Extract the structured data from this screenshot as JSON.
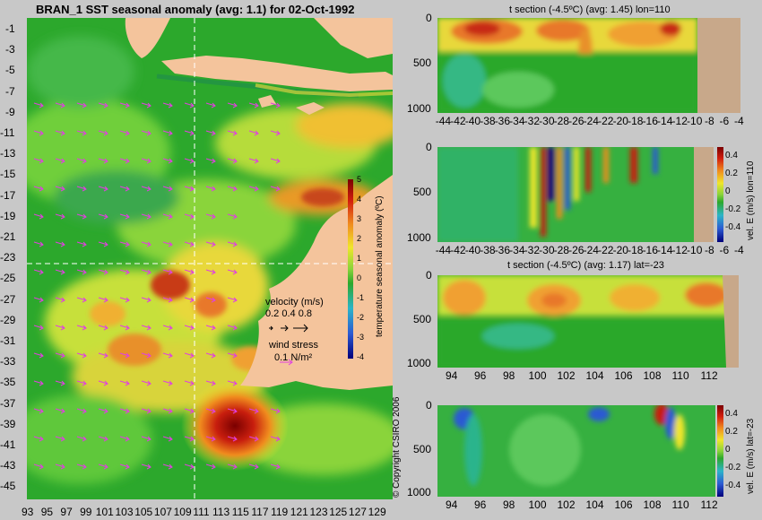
{
  "chart_data": [
    {
      "type": "heatmap",
      "title": "BRAN_1 SST seasonal anomaly (avg: 1.1) for 02-Oct-1992",
      "x_ticks": [
        "93",
        "95",
        "97",
        "99",
        "101",
        "103",
        "105",
        "107",
        "109",
        "111",
        "113",
        "115",
        "117",
        "119",
        "121",
        "123",
        "125",
        "127",
        "129"
      ],
      "y_ticks": [
        "-1",
        "-3",
        "-5",
        "-7",
        "-9",
        "-11",
        "-13",
        "-15",
        "-17",
        "-19",
        "-21",
        "-23",
        "-25",
        "-27",
        "-29",
        "-31",
        "-33",
        "-35",
        "-37",
        "-39",
        "-41",
        "-43",
        "-45"
      ],
      "xlim": [
        93,
        130
      ],
      "ylim": [
        -45,
        0
      ],
      "crosshair": {
        "lon": 110,
        "lat": -23
      },
      "colorbar": {
        "label": "temperature seasonal anomaly (ºC)",
        "ticks": [
          "5",
          "4",
          "3",
          "2",
          "1",
          "0",
          "-1",
          "-2",
          "-3",
          "-4"
        ],
        "range": [
          -4,
          5
        ]
      },
      "legend": {
        "velocity_title": "velocity (m/s)",
        "velocity_scale": "0.2 0.4 0.8",
        "wind_title": "wind stress",
        "wind_scale": "0.1 N/m²"
      },
      "hot_spots": [
        {
          "lon": 113,
          "lat": -38,
          "anomaly": 4.5
        },
        {
          "lon": 105,
          "lat": -26,
          "anomaly": 3.5
        },
        {
          "lon": 111,
          "lat": -34,
          "anomaly": 3.0
        },
        {
          "lon": 121,
          "lat": -16,
          "anomaly": 3.0
        },
        {
          "lon": 103,
          "lat": -31,
          "anomaly": 2.5
        }
      ]
    },
    {
      "type": "heatmap",
      "title": "t section (-4.5ºC) (avg: 1.45) lon=110",
      "x_ticks": [
        "-44",
        "-42",
        "-40",
        "-38",
        "-36",
        "-34",
        "-32",
        "-30",
        "-28",
        "-26",
        "-24",
        "-22",
        "-20",
        "-18",
        "-16",
        "-14",
        "-12",
        "-10",
        "-8",
        "-6",
        "-4"
      ],
      "y_ticks": [
        "0",
        "500",
        "1000"
      ],
      "xlim": [
        -45,
        -3
      ],
      "ylim": [
        1050,
        0
      ]
    },
    {
      "type": "heatmap",
      "title": "",
      "x_ticks": [
        "-44",
        "-42",
        "-40",
        "-38",
        "-36",
        "-34",
        "-32",
        "-30",
        "-28",
        "-26",
        "-24",
        "-22",
        "-20",
        "-18",
        "-16",
        "-14",
        "-12",
        "-10",
        "-8",
        "-6",
        "-4"
      ],
      "y_ticks": [
        "0",
        "500",
        "1000"
      ],
      "xlim": [
        -45,
        -3
      ],
      "ylim": [
        1050,
        0
      ],
      "colorbar": {
        "label": "vel. E (m/s) lon=110",
        "ticks": [
          "0.4",
          "0.2",
          "0",
          "-0.2",
          "-0.4"
        ],
        "range": [
          -0.45,
          0.45
        ]
      }
    },
    {
      "type": "heatmap",
      "title": "t section (-4.5ºC) (avg: 1.17) lat=-23",
      "x_ticks": [
        "94",
        "96",
        "98",
        "100",
        "102",
        "104",
        "106",
        "108",
        "110",
        "112"
      ],
      "y_ticks": [
        "0",
        "500",
        "1000"
      ],
      "xlim": [
        93,
        114
      ],
      "ylim": [
        1050,
        0
      ]
    },
    {
      "type": "heatmap",
      "title": "",
      "x_ticks": [
        "94",
        "96",
        "98",
        "100",
        "102",
        "104",
        "106",
        "108",
        "110",
        "112"
      ],
      "y_ticks": [
        "0",
        "500",
        "1000"
      ],
      "xlim": [
        93,
        114
      ],
      "ylim": [
        1050,
        0
      ],
      "colorbar": {
        "label": "vel. E (m/s) lat=-23",
        "ticks": [
          "0.4",
          "0.2",
          "0",
          "-0.2",
          "-0.4"
        ],
        "range": [
          -0.45,
          0.45
        ]
      }
    }
  ],
  "copyright": "© Copyright CSIRO 2006",
  "colors": {
    "land": "#f4c49c",
    "background": "#c8c8c8",
    "magenta_arrows": "#e040e0"
  }
}
